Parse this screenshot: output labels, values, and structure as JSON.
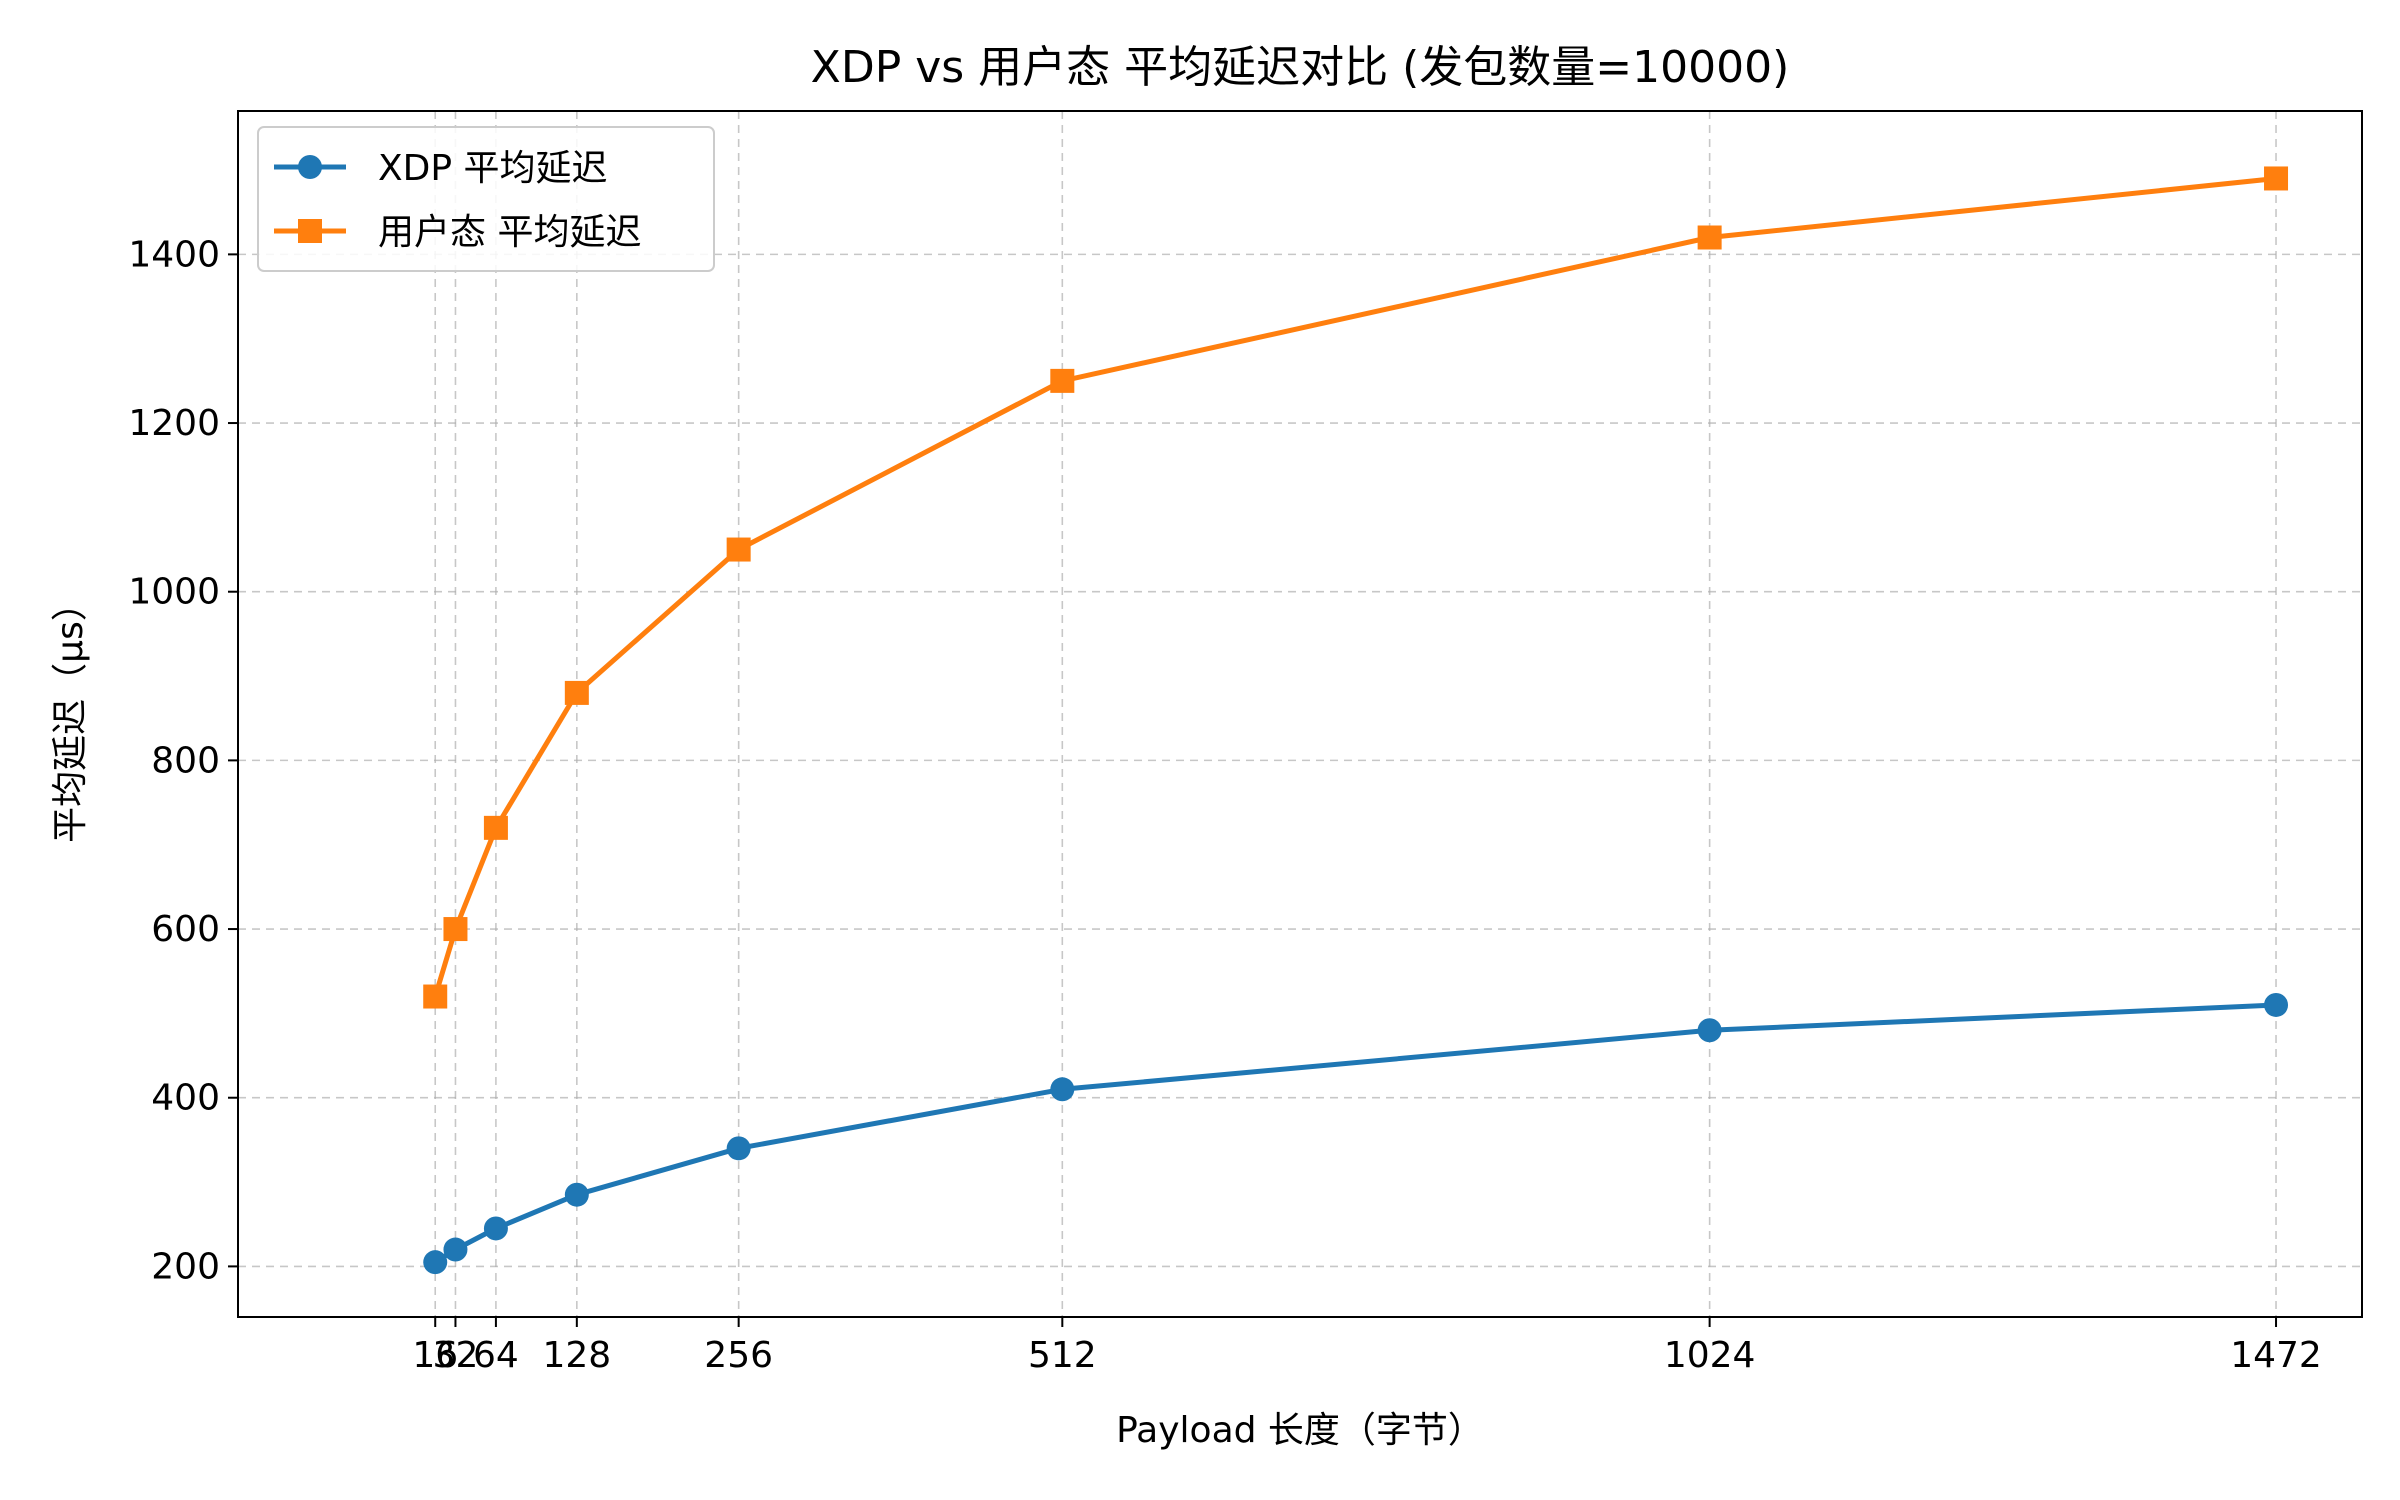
{
  "chart_data": {
    "type": "line",
    "title": "XDP vs 用户态 平均延迟对比 (发包数量=10000)",
    "xlabel": "Payload 长度（字节）",
    "ylabel": "平均延迟（μs）",
    "x": [
      16,
      32,
      64,
      128,
      256,
      512,
      1024,
      1472
    ],
    "x_tick_labels": [
      "16",
      "32",
      "64",
      "128",
      "256",
      "512",
      "1024",
      "1472"
    ],
    "xlim": [
      -140,
      1540
    ],
    "ylim": [
      140,
      1570
    ],
    "y_ticks": [
      200,
      400,
      600,
      800,
      1000,
      1200,
      1400
    ],
    "y_tick_labels": [
      "200",
      "400",
      "600",
      "800",
      "1000",
      "1200",
      "1400"
    ],
    "grid": true,
    "legend_position": "top-left",
    "series": [
      {
        "name": "XDP 平均延迟",
        "marker": "circle",
        "color": "#1f77b4",
        "values": [
          205,
          220,
          245,
          285,
          340,
          410,
          480,
          510
        ]
      },
      {
        "name": "用户态 平均延迟",
        "marker": "square",
        "color": "#ff7f0e",
        "values": [
          520,
          600,
          720,
          880,
          1050,
          1250,
          1420,
          1490
        ]
      }
    ]
  }
}
